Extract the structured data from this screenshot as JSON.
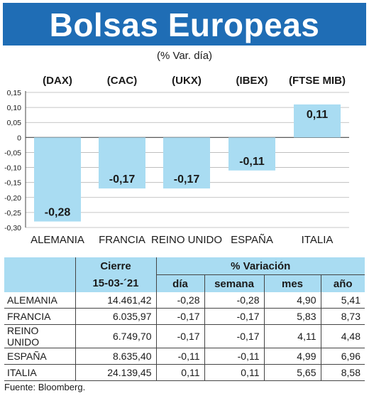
{
  "header": {
    "title": "Bolsas Europeas",
    "subtitle": "(% Var. día)",
    "title_color": "#1f6db5"
  },
  "chart_data": {
    "type": "bar",
    "categories": [
      "ALEMANIA",
      "FRANCIA",
      "REINO UNIDO",
      "ESPAÑA",
      "ITALIA"
    ],
    "index_codes": [
      "(DAX)",
      "(CAC)",
      "(UKX)",
      "(IBEX)",
      "(FTSE MIB)"
    ],
    "values": [
      -0.28,
      -0.17,
      -0.17,
      -0.11,
      0.11
    ],
    "value_labels": [
      "-0,28",
      "-0,17",
      "-0,17",
      "-0,11",
      "0,11"
    ],
    "ylim": [
      -0.3,
      0.15
    ],
    "yticks": [
      0.15,
      0.1,
      0.05,
      0,
      -0.05,
      -0.1,
      -0.15,
      -0.2,
      -0.25,
      -0.3
    ],
    "ytick_labels": [
      "0,15",
      "0,10",
      "0,05",
      "0",
      "-0,05",
      "-0,10",
      "-0,15",
      "-0,20",
      "-0,25",
      "-0,30"
    ],
    "grid": true,
    "bar_color": "#a9dcf2"
  },
  "table": {
    "header_cierre": "Cierre",
    "header_variacion": "% Variación",
    "date": "15-03-´21",
    "sub_headers": [
      "día",
      "semana",
      "mes",
      "año"
    ],
    "rows": [
      {
        "name": "ALEMANIA",
        "cierre": "14.461,42",
        "dia": "-0,28",
        "semana": "-0,28",
        "mes": "4,90",
        "ano": "5,41"
      },
      {
        "name": "FRANCIA",
        "cierre": "6.035,97",
        "dia": "-0,17",
        "semana": "-0,17",
        "mes": "5,83",
        "ano": "8,73"
      },
      {
        "name": "REINO UNIDO",
        "cierre": "6.749,70",
        "dia": "-0,17",
        "semana": "-0,17",
        "mes": "4,11",
        "ano": "4,48"
      },
      {
        "name": "ESPAÑA",
        "cierre": "8.635,40",
        "dia": "-0,11",
        "semana": "-0,11",
        "mes": "4,99",
        "ano": "6,96"
      },
      {
        "name": "ITALIA",
        "cierre": "24.139,45",
        "dia": "0,11",
        "semana": "0,11",
        "mes": "5,65",
        "ano": "8,58"
      }
    ]
  },
  "source": "Fuente: Bloomberg."
}
